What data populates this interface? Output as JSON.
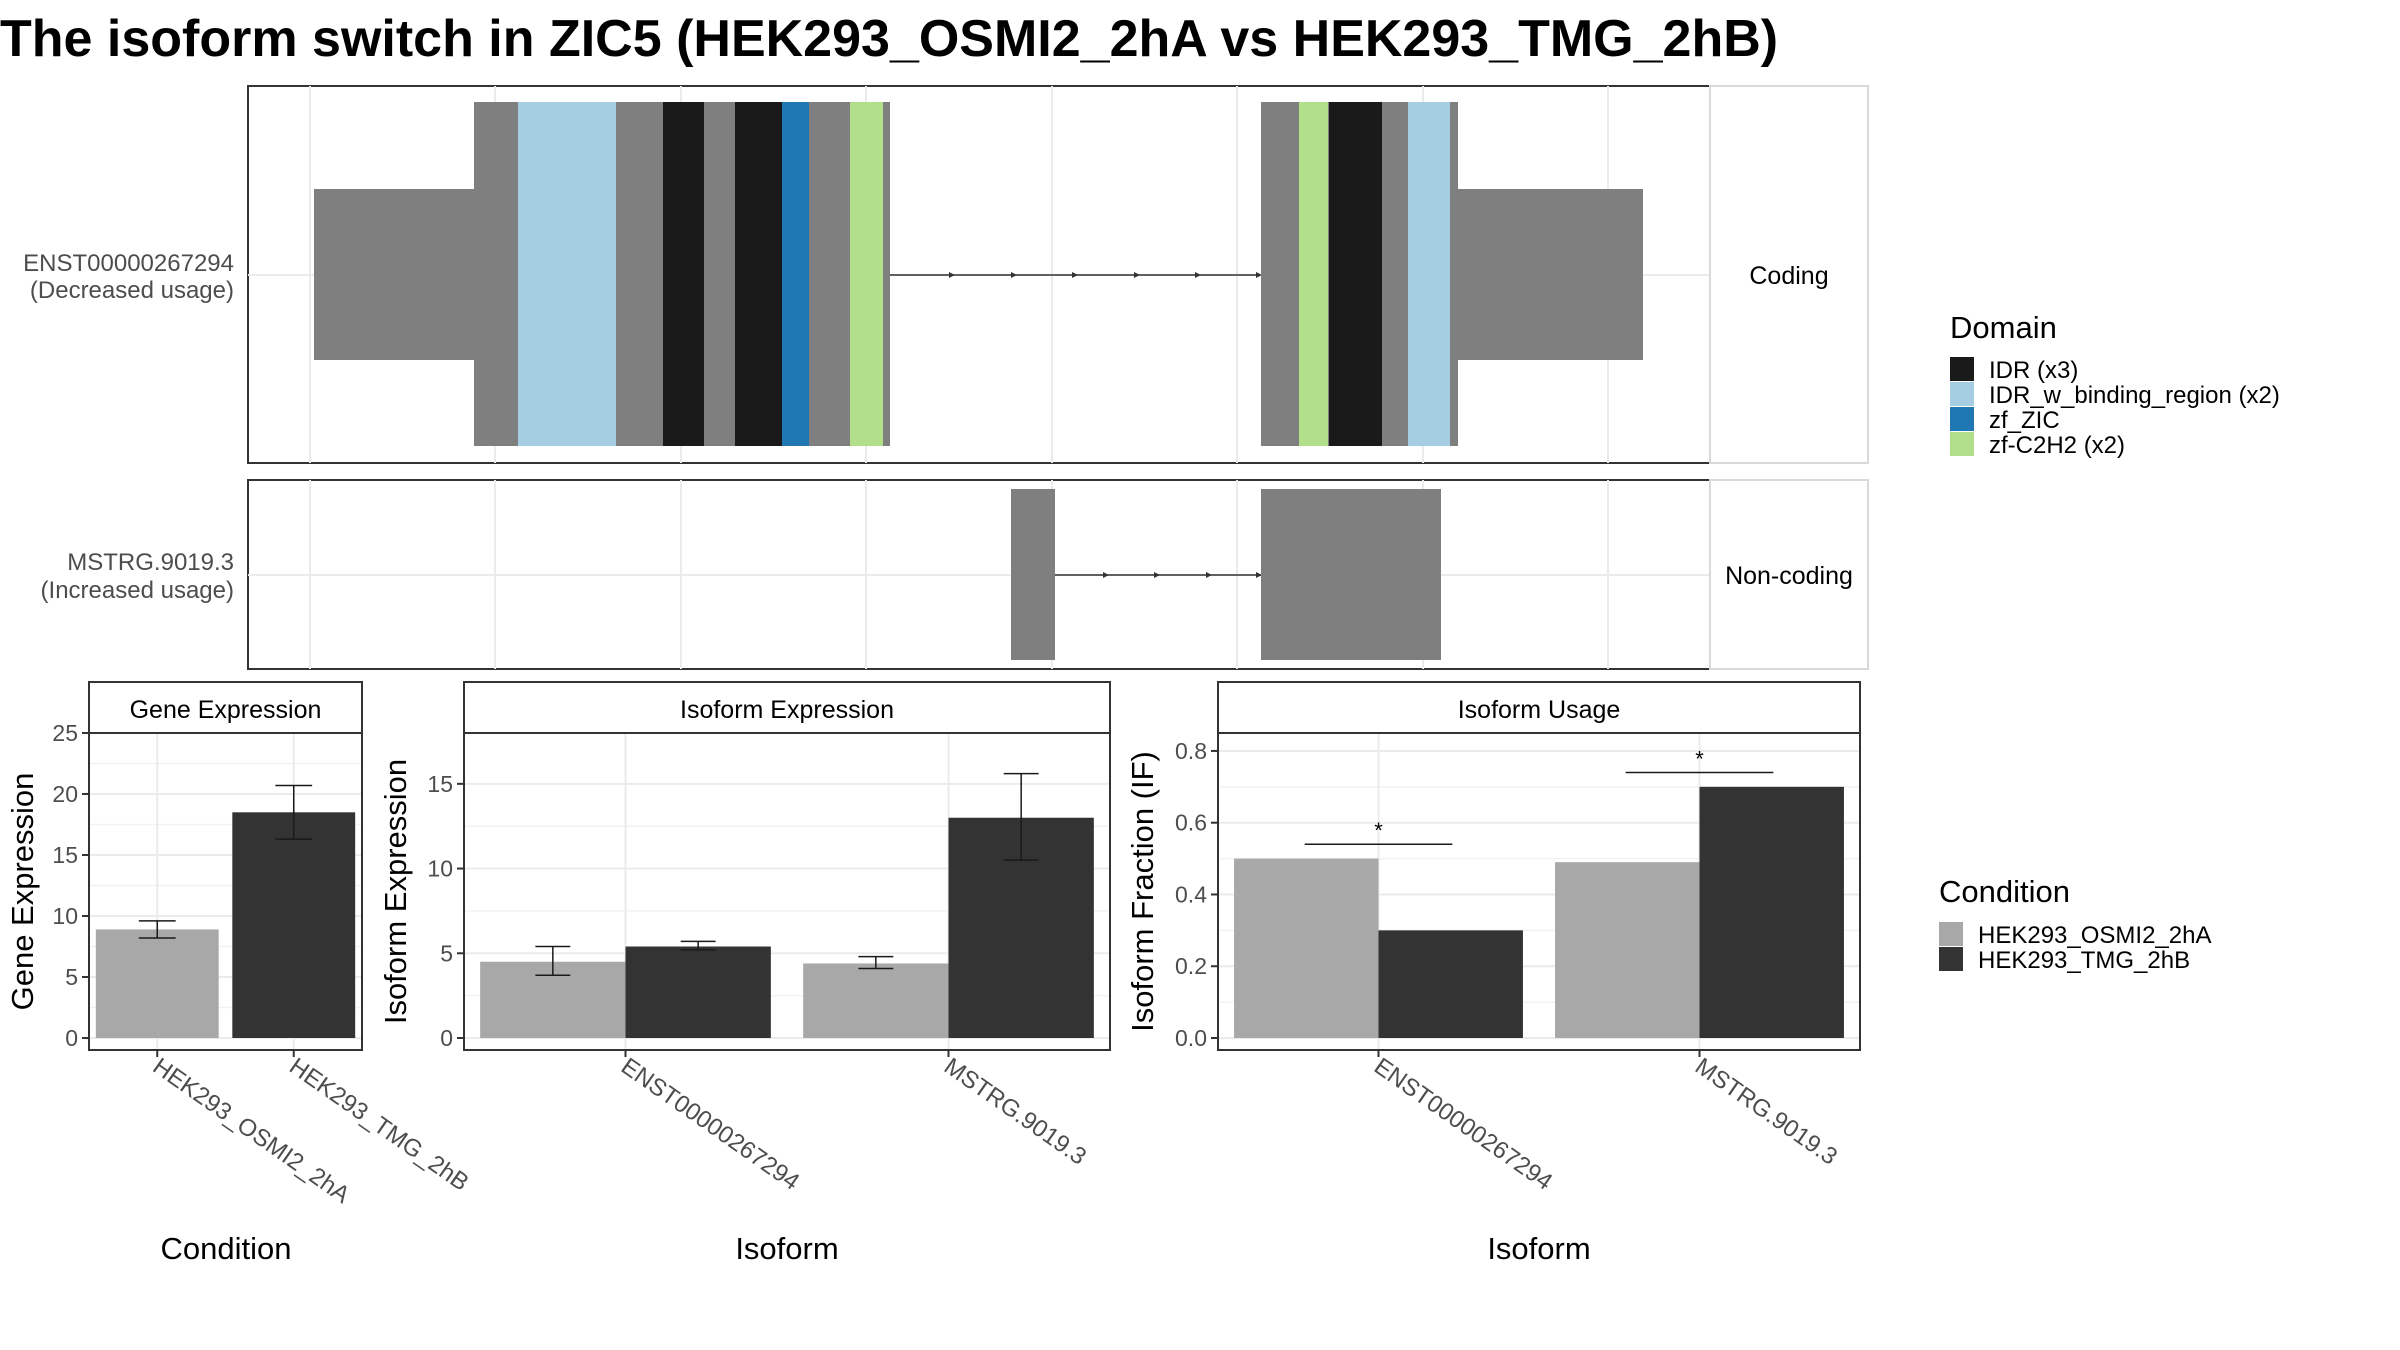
{
  "title": "The isoform switch in ZIC5 (HEK293_OSMI2_2hA vs HEK293_TMG_2hB)",
  "colors": {
    "idr": "#1a1a1a",
    "idr_w_binding_region": "#a6cee3",
    "zf_zic": "#1f78b4",
    "zf_c2h2": "#b2df8a",
    "exon": "#7f7f7f",
    "cond_a": "#a8a8a8",
    "cond_b": "#333333"
  },
  "domain_legend": {
    "title": "Domain",
    "items": [
      {
        "label": "IDR (x3)",
        "color": "#1a1a1a"
      },
      {
        "label": "IDR_w_binding_region (x2)",
        "color": "#a6cee3"
      },
      {
        "label": "zf_ZIC",
        "color": "#1f78b4"
      },
      {
        "label": "zf-C2H2 (x2)",
        "color": "#b2df8a"
      }
    ]
  },
  "condition_legend": {
    "title": "Condition",
    "items": [
      {
        "label": "HEK293_OSMI2_2hA",
        "color": "#a8a8a8"
      },
      {
        "label": "HEK293_TMG_2hB",
        "color": "#333333"
      }
    ]
  },
  "structure": {
    "isoforms": [
      {
        "name": "ENST00000267294",
        "usage": "(Decreased usage)",
        "strip": "Coding"
      },
      {
        "name": "MSTRG.9019.3",
        "usage": "(Increased usage)",
        "strip": "Non-coding"
      }
    ]
  },
  "chart_data": [
    {
      "type": "bar",
      "panel": "Gene Expression",
      "xlabel": "Condition",
      "ylabel": "Gene Expression",
      "ylim": [
        0,
        25
      ],
      "yticks": [
        0,
        5,
        10,
        15,
        20,
        25
      ],
      "categories": [
        "HEK293_OSMI2_2hA",
        "HEK293_TMG_2hB"
      ],
      "values": [
        8.9,
        18.5
      ],
      "errors": [
        [
          8.2,
          9.6
        ],
        [
          16.3,
          20.7
        ]
      ]
    },
    {
      "type": "bar",
      "panel": "Isoform Expression",
      "xlabel": "Isoform",
      "ylabel": "Isoform Expression",
      "ylim": [
        0,
        18
      ],
      "yticks": [
        0,
        5,
        10,
        15
      ],
      "categories": [
        "ENST00000267294",
        "MSTRG.9019.3"
      ],
      "series": [
        {
          "name": "HEK293_OSMI2_2hA",
          "values": [
            4.5,
            4.4
          ],
          "errors": [
            [
              3.7,
              5.4
            ],
            [
              4.1,
              4.8
            ]
          ]
        },
        {
          "name": "HEK293_TMG_2hB",
          "values": [
            5.4,
            13.0
          ],
          "errors": [
            [
              5.2,
              5.7
            ],
            [
              10.5,
              15.6
            ]
          ]
        }
      ]
    },
    {
      "type": "bar",
      "panel": "Isoform Usage",
      "xlabel": "Isoform",
      "ylabel": "Isoform Fraction (IF)",
      "ylim": [
        0,
        0.85
      ],
      "yticks": [
        "0.0",
        "0.2",
        "0.4",
        "0.6",
        "0.8"
      ],
      "categories": [
        "ENST00000267294",
        "MSTRG.9019.3"
      ],
      "series": [
        {
          "name": "HEK293_OSMI2_2hA",
          "values": [
            0.5,
            0.49
          ]
        },
        {
          "name": "HEK293_TMG_2hB",
          "values": [
            0.3,
            0.7
          ]
        }
      ],
      "significance": [
        "*",
        "*"
      ],
      "significance_y": [
        0.54,
        0.74
      ]
    }
  ]
}
